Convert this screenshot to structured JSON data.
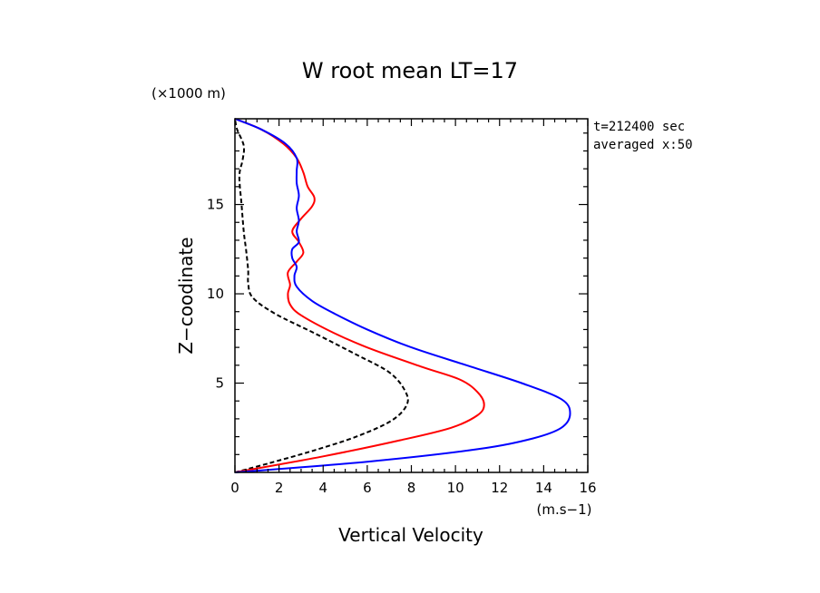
{
  "chart_data": {
    "type": "line",
    "title": "W root mean LT=17",
    "xlabel": "Vertical Velocity",
    "ylabel": "Z−coodinate",
    "x_unit": "(m.s−1)",
    "y_unit": "(×1000 m)",
    "annotations": [
      "t=212400 sec",
      "averaged  x:50"
    ],
    "xlim": [
      0,
      16
    ],
    "ylim": [
      0,
      19.8
    ],
    "x_ticks": [
      "0",
      "2",
      "4",
      "6",
      "8",
      "10",
      "12",
      "14",
      "16"
    ],
    "y_ticks": [
      "5",
      "10",
      "15"
    ],
    "x_tick_values": [
      0,
      2,
      4,
      6,
      8,
      10,
      12,
      14,
      16
    ],
    "y_tick_values": [
      5,
      10,
      15
    ],
    "grid": false,
    "series": [
      {
        "color": "#000000",
        "dashed": true,
        "points": [
          [
            0,
            0
          ],
          [
            1.5,
            0.5
          ],
          [
            3.5,
            1.2
          ],
          [
            5.5,
            2
          ],
          [
            7.1,
            2.9
          ],
          [
            7.8,
            3.8
          ],
          [
            7.7,
            4.6
          ],
          [
            7,
            5.6
          ],
          [
            5.5,
            6.6
          ],
          [
            3.6,
            7.8
          ],
          [
            1.8,
            8.9
          ],
          [
            0.8,
            9.8
          ],
          [
            0.6,
            10.6
          ],
          [
            0.6,
            11.3
          ],
          [
            0.5,
            12.5
          ],
          [
            0.4,
            13.5
          ],
          [
            0.3,
            15
          ],
          [
            0.2,
            16.6
          ],
          [
            0.35,
            17.5
          ],
          [
            0.4,
            18.3
          ],
          [
            0.1,
            19.2
          ],
          [
            0,
            19.8
          ]
        ]
      },
      {
        "color": "#ff0000",
        "dashed": false,
        "points": [
          [
            0,
            0
          ],
          [
            4,
            0.9
          ],
          [
            7.5,
            1.8
          ],
          [
            9.8,
            2.5
          ],
          [
            11,
            3.2
          ],
          [
            11.3,
            3.8
          ],
          [
            11,
            4.5
          ],
          [
            10.2,
            5.2
          ],
          [
            8.5,
            5.9
          ],
          [
            6.2,
            6.9
          ],
          [
            4.5,
            7.8
          ],
          [
            3,
            8.8
          ],
          [
            2.5,
            9.4
          ],
          [
            2.4,
            10
          ],
          [
            2.5,
            10.5
          ],
          [
            2.4,
            11.2
          ],
          [
            2.8,
            11.8
          ],
          [
            3.1,
            12.3
          ],
          [
            2.9,
            12.9
          ],
          [
            2.6,
            13.5
          ],
          [
            3,
            14.2
          ],
          [
            3.5,
            14.9
          ],
          [
            3.6,
            15.4
          ],
          [
            3.3,
            16
          ],
          [
            3.1,
            16.8
          ],
          [
            2.8,
            17.6
          ],
          [
            2.2,
            18.4
          ],
          [
            1.2,
            19.2
          ],
          [
            0,
            19.8
          ]
        ]
      },
      {
        "color": "#0000ff",
        "dashed": false,
        "points": [
          [
            0,
            0
          ],
          [
            6,
            0.6
          ],
          [
            11,
            1.3
          ],
          [
            13.5,
            1.9
          ],
          [
            14.8,
            2.5
          ],
          [
            15.2,
            3.3
          ],
          [
            14.8,
            4.1
          ],
          [
            13,
            5
          ],
          [
            10.5,
            6
          ],
          [
            8,
            7
          ],
          [
            6,
            8
          ],
          [
            4.5,
            8.9
          ],
          [
            3.5,
            9.6
          ],
          [
            2.8,
            10.4
          ],
          [
            2.7,
            11
          ],
          [
            2.8,
            11.5
          ],
          [
            2.6,
            12
          ],
          [
            2.6,
            12.5
          ],
          [
            2.9,
            12.9
          ],
          [
            2.8,
            13.5
          ],
          [
            2.9,
            14.1
          ],
          [
            2.8,
            14.8
          ],
          [
            2.9,
            15.5
          ],
          [
            2.8,
            16.2
          ],
          [
            2.8,
            16.9
          ],
          [
            2.8,
            17.6
          ],
          [
            2.3,
            18.4
          ],
          [
            1.2,
            19.2
          ],
          [
            0,
            19.8
          ]
        ]
      }
    ]
  }
}
